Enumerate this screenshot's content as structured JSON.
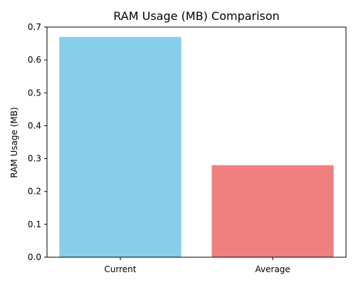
{
  "chart_data": {
    "type": "bar",
    "title": "RAM Usage (MB) Comparison",
    "xlabel": "",
    "ylabel": "RAM Usage (MB)",
    "categories": [
      "Current",
      "Average"
    ],
    "values": [
      0.67,
      0.28
    ],
    "colors": [
      "#87ceeb",
      "#f08080"
    ],
    "ylim": [
      0,
      0.7
    ],
    "yticks": [
      0.0,
      0.1,
      0.2,
      0.3,
      0.4,
      0.5,
      0.6,
      0.7
    ],
    "ytick_labels": [
      "0.0",
      "0.1",
      "0.2",
      "0.3",
      "0.4",
      "0.5",
      "0.6",
      "0.7"
    ],
    "grid": false,
    "legend": "none"
  }
}
